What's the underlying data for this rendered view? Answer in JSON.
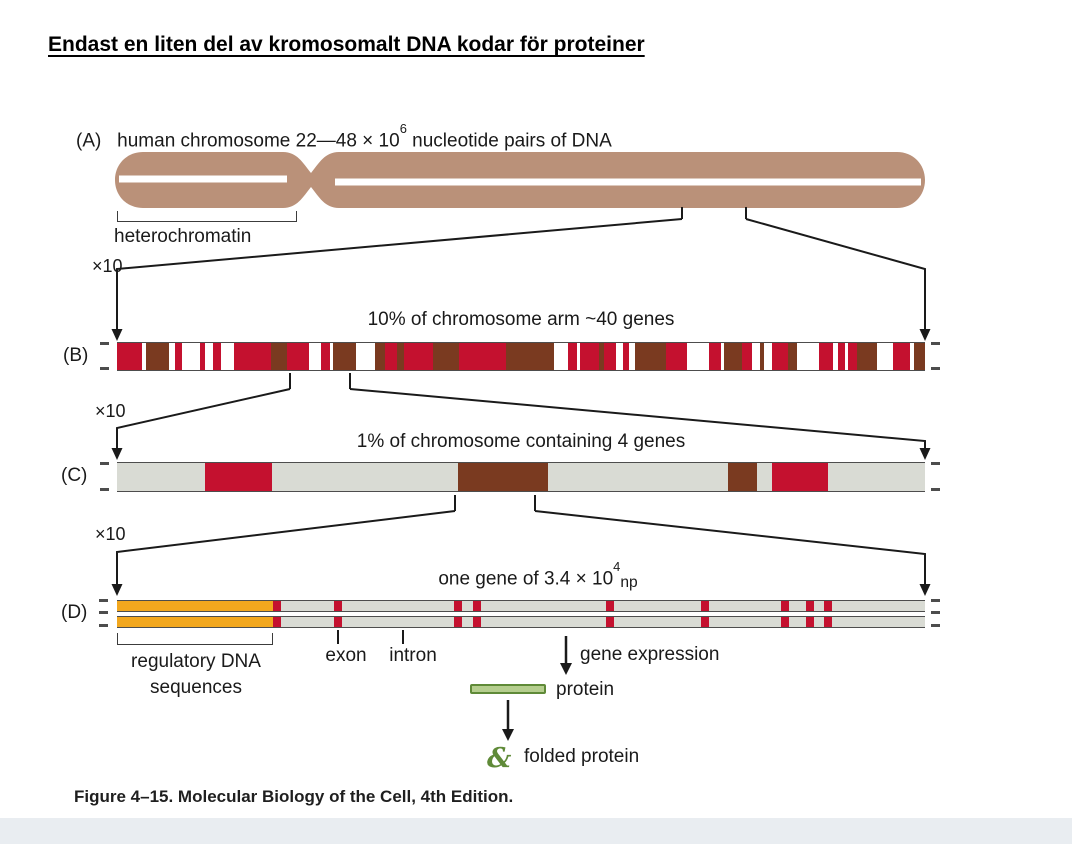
{
  "page": {
    "title": "Endast en liten del av kromosomalt DNA kodar för proteiner",
    "caption": "Figure 4–15. Molecular Biology of the Cell, 4th Edition."
  },
  "colors": {
    "chromosome_tan": "#BA9179",
    "band_red": "#C4112F",
    "band_brown": "#7A3A20",
    "bar_gray": "#D9DBD4",
    "regulatory_orange": "#F2A71E",
    "protein_green_fill": "#B5CE8E",
    "protein_green_border": "#5F8A38",
    "line_black": "#1a1a1a"
  },
  "panelA": {
    "label": "(A)",
    "title_prefix": "human chromosome 22—48 × 10",
    "title_exponent": "6",
    "title_suffix": " nucleotide pairs of DNA",
    "heterochromatin_label": "heterochromatin",
    "zoom_label": "×10"
  },
  "panelB": {
    "label": "(B)",
    "title": "10% of chromosome arm ~40 genes",
    "zoom_label": "×10",
    "bands": [
      {
        "c": "red",
        "w": 3.1
      },
      {
        "c": "white",
        "w": 0.5
      },
      {
        "c": "brown",
        "w": 2.9
      },
      {
        "c": "white",
        "w": 0.7
      },
      {
        "c": "red",
        "w": 0.9
      },
      {
        "c": "white",
        "w": 2.2
      },
      {
        "c": "red",
        "w": 0.6
      },
      {
        "c": "white",
        "w": 1.0
      },
      {
        "c": "red",
        "w": 1.0
      },
      {
        "c": "white",
        "w": 1.6
      },
      {
        "c": "red",
        "w": 4.6
      },
      {
        "c": "brown",
        "w": 2.0
      },
      {
        "c": "red",
        "w": 2.7
      },
      {
        "c": "white",
        "w": 1.5
      },
      {
        "c": "red",
        "w": 1.1
      },
      {
        "c": "white",
        "w": 0.4
      },
      {
        "c": "brown",
        "w": 2.8
      },
      {
        "c": "white",
        "w": 2.4
      },
      {
        "c": "brown",
        "w": 1.2
      },
      {
        "c": "red",
        "w": 1.5
      },
      {
        "c": "brown",
        "w": 0.9
      },
      {
        "c": "red",
        "w": 3.6
      },
      {
        "c": "brown",
        "w": 3.2
      },
      {
        "c": "red",
        "w": 5.8
      },
      {
        "c": "brown",
        "w": 6.0
      },
      {
        "c": "white",
        "w": 1.7
      },
      {
        "c": "red",
        "w": 1.2
      },
      {
        "c": "white",
        "w": 0.3
      },
      {
        "c": "red",
        "w": 2.4
      },
      {
        "c": "brown",
        "w": 0.6
      },
      {
        "c": "red",
        "w": 1.5
      },
      {
        "c": "white",
        "w": 0.9
      },
      {
        "c": "red",
        "w": 0.7
      },
      {
        "c": "white",
        "w": 0.7
      },
      {
        "c": "brown",
        "w": 3.9
      },
      {
        "c": "red",
        "w": 2.6
      },
      {
        "c": "white",
        "w": 2.7
      },
      {
        "c": "red",
        "w": 1.5
      },
      {
        "c": "white",
        "w": 0.4
      },
      {
        "c": "brown",
        "w": 2.2
      },
      {
        "c": "red",
        "w": 1.2
      },
      {
        "c": "white",
        "w": 1.0
      },
      {
        "c": "brown",
        "w": 0.6
      },
      {
        "c": "white",
        "w": 0.9
      },
      {
        "c": "red",
        "w": 2.0
      },
      {
        "c": "brown",
        "w": 1.1
      },
      {
        "c": "white",
        "w": 2.8
      },
      {
        "c": "red",
        "w": 1.7
      },
      {
        "c": "white",
        "w": 0.6
      },
      {
        "c": "red",
        "w": 0.9
      },
      {
        "c": "white",
        "w": 0.4
      },
      {
        "c": "red",
        "w": 1.1
      },
      {
        "c": "brown",
        "w": 2.5
      },
      {
        "c": "white",
        "w": 1.9
      },
      {
        "c": "red",
        "w": 2.1
      },
      {
        "c": "white",
        "w": 0.5
      },
      {
        "c": "brown",
        "w": 1.4
      }
    ]
  },
  "panelC": {
    "label": "(C)",
    "title": "1% of chromosome containing 4 genes",
    "zoom_label": "×10",
    "bands": [
      {
        "c": "gray",
        "w": 10.9
      },
      {
        "c": "red",
        "w": 8.3
      },
      {
        "c": "gray",
        "w": 23.0
      },
      {
        "c": "brown",
        "w": 11.1
      },
      {
        "c": "gray",
        "w": 22.3
      },
      {
        "c": "brown",
        "w": 3.6
      },
      {
        "c": "gray",
        "w": 1.9
      },
      {
        "c": "red",
        "w": 6.9
      },
      {
        "c": "gray",
        "w": 12.0
      }
    ]
  },
  "panelD": {
    "label": "(D)",
    "title_prefix": "one gene of 3.4 × 10",
    "title_exponent": "4",
    "title_suffix": "np",
    "regulatory_width_pct": 19.3,
    "exon_positions_pct": [
      19.3,
      26.9,
      41.7,
      44.1,
      60.5,
      72.3,
      82.2,
      85.3,
      87.5
    ],
    "labels": {
      "regulatory_line1": "regulatory DNA",
      "regulatory_line2": "sequences",
      "exon": "exon",
      "intron": "intron",
      "gene_expression": "gene expression",
      "protein": "protein",
      "folded_protein": "folded protein"
    }
  },
  "icons": {
    "folded_protein_glyph": "&"
  }
}
